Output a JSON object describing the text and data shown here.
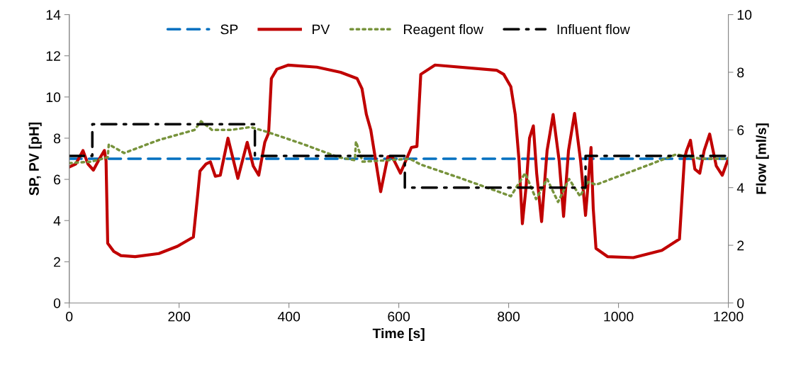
{
  "chart_data": {
    "type": "line",
    "xlabel": "Time [s]",
    "ylabel": "SP, PV [pH]",
    "y2label": "Flow [ml/s]",
    "xlim": [
      0,
      1200
    ],
    "xticks": [
      0,
      200,
      400,
      600,
      800,
      1000,
      1200
    ],
    "ylim": [
      0,
      14
    ],
    "yticks": [
      0,
      2,
      4,
      6,
      8,
      10,
      12,
      14
    ],
    "y2lim": [
      0,
      10
    ],
    "y2ticks": [
      0,
      2,
      4,
      6,
      8,
      10
    ],
    "grid": false,
    "legend": "top",
    "marker": "none",
    "series": [
      {
        "name": "SP",
        "color": "#0070c0",
        "line_style": "dashed",
        "x": [
          0,
          1200
        ],
        "values": [
          7,
          7
        ]
      },
      {
        "name": "PV",
        "color": "#c00000",
        "line_style": "solid",
        "x": [
          0,
          12,
          25,
          34,
          44,
          55,
          64,
          67,
          70,
          81,
          94,
          120,
          163,
          197,
          226,
          234,
          238,
          249,
          257,
          266,
          275,
          289,
          307,
          324,
          335,
          345,
          356,
          363,
          368,
          378,
          399,
          451,
          494,
          524,
          533,
          541,
          549,
          558,
          567,
          580,
          588,
          603,
          623,
          633,
          640,
          666,
          778,
          791,
          804,
          812,
          819,
          825,
          832,
          838,
          845,
          851,
          860,
          870,
          881,
          892,
          900,
          909,
          920,
          931,
          940,
          950,
          954,
          959,
          980,
          1027,
          1079,
          1111,
          1120,
          1124,
          1131,
          1139,
          1148,
          1156,
          1166,
          1178,
          1189,
          1200
        ],
        "values": [
          6.6,
          6.75,
          7.4,
          6.75,
          6.45,
          7.0,
          7.4,
          6.9,
          2.9,
          2.5,
          2.3,
          2.25,
          2.4,
          2.75,
          3.2,
          5.3,
          6.4,
          6.75,
          6.85,
          6.15,
          6.2,
          8.0,
          6.05,
          7.8,
          6.65,
          6.2,
          7.8,
          8.25,
          10.9,
          11.35,
          11.55,
          11.45,
          11.2,
          10.9,
          10.4,
          9.15,
          8.4,
          6.9,
          5.4,
          7.1,
          7.1,
          6.3,
          7.55,
          7.6,
          11.1,
          11.55,
          11.3,
          11.1,
          10.5,
          9.15,
          6.9,
          3.85,
          5.7,
          8.0,
          8.6,
          6.3,
          3.95,
          7.4,
          9.15,
          6.9,
          4.2,
          7.4,
          9.2,
          6.9,
          4.25,
          7.55,
          4.6,
          2.65,
          2.25,
          2.2,
          2.55,
          3.1,
          7.0,
          7.4,
          7.9,
          6.5,
          6.3,
          7.4,
          8.2,
          6.65,
          6.2,
          7.0
        ]
      },
      {
        "name": "Reagent flow",
        "color": "#77933c",
        "line_style": "dotted",
        "axis": "y2",
        "x": [
          0,
          40,
          70,
          72,
          100,
          163,
          228,
          240,
          260,
          294,
          330,
          357,
          365,
          427,
          491,
          520,
          522,
          534,
          580,
          620,
          640,
          709,
          790,
          804,
          830,
          850,
          870,
          890,
          910,
          930,
          945,
          959,
          1036,
          1105,
          1150,
          1200
        ],
        "values": [
          4.85,
          4.9,
          5.05,
          5.5,
          5.2,
          5.65,
          6.0,
          6.3,
          6.0,
          6.0,
          6.1,
          5.95,
          5.9,
          5.5,
          5.05,
          4.95,
          5.6,
          4.9,
          4.95,
          5.0,
          4.8,
          4.35,
          3.8,
          3.7,
          4.5,
          3.6,
          4.3,
          3.5,
          4.3,
          3.7,
          4.2,
          4.1,
          4.65,
          5.15,
          5.0,
          5.0
        ]
      },
      {
        "name": "Influent flow",
        "color": "#000000",
        "line_style": "dashdot",
        "axis": "y2",
        "x": [
          0,
          42,
          42,
          338,
          338,
          611,
          611,
          940,
          940,
          1200
        ],
        "values": [
          5.1,
          5.1,
          6.2,
          6.2,
          5.1,
          5.1,
          4.0,
          4.0,
          5.1,
          5.1
        ]
      }
    ]
  }
}
